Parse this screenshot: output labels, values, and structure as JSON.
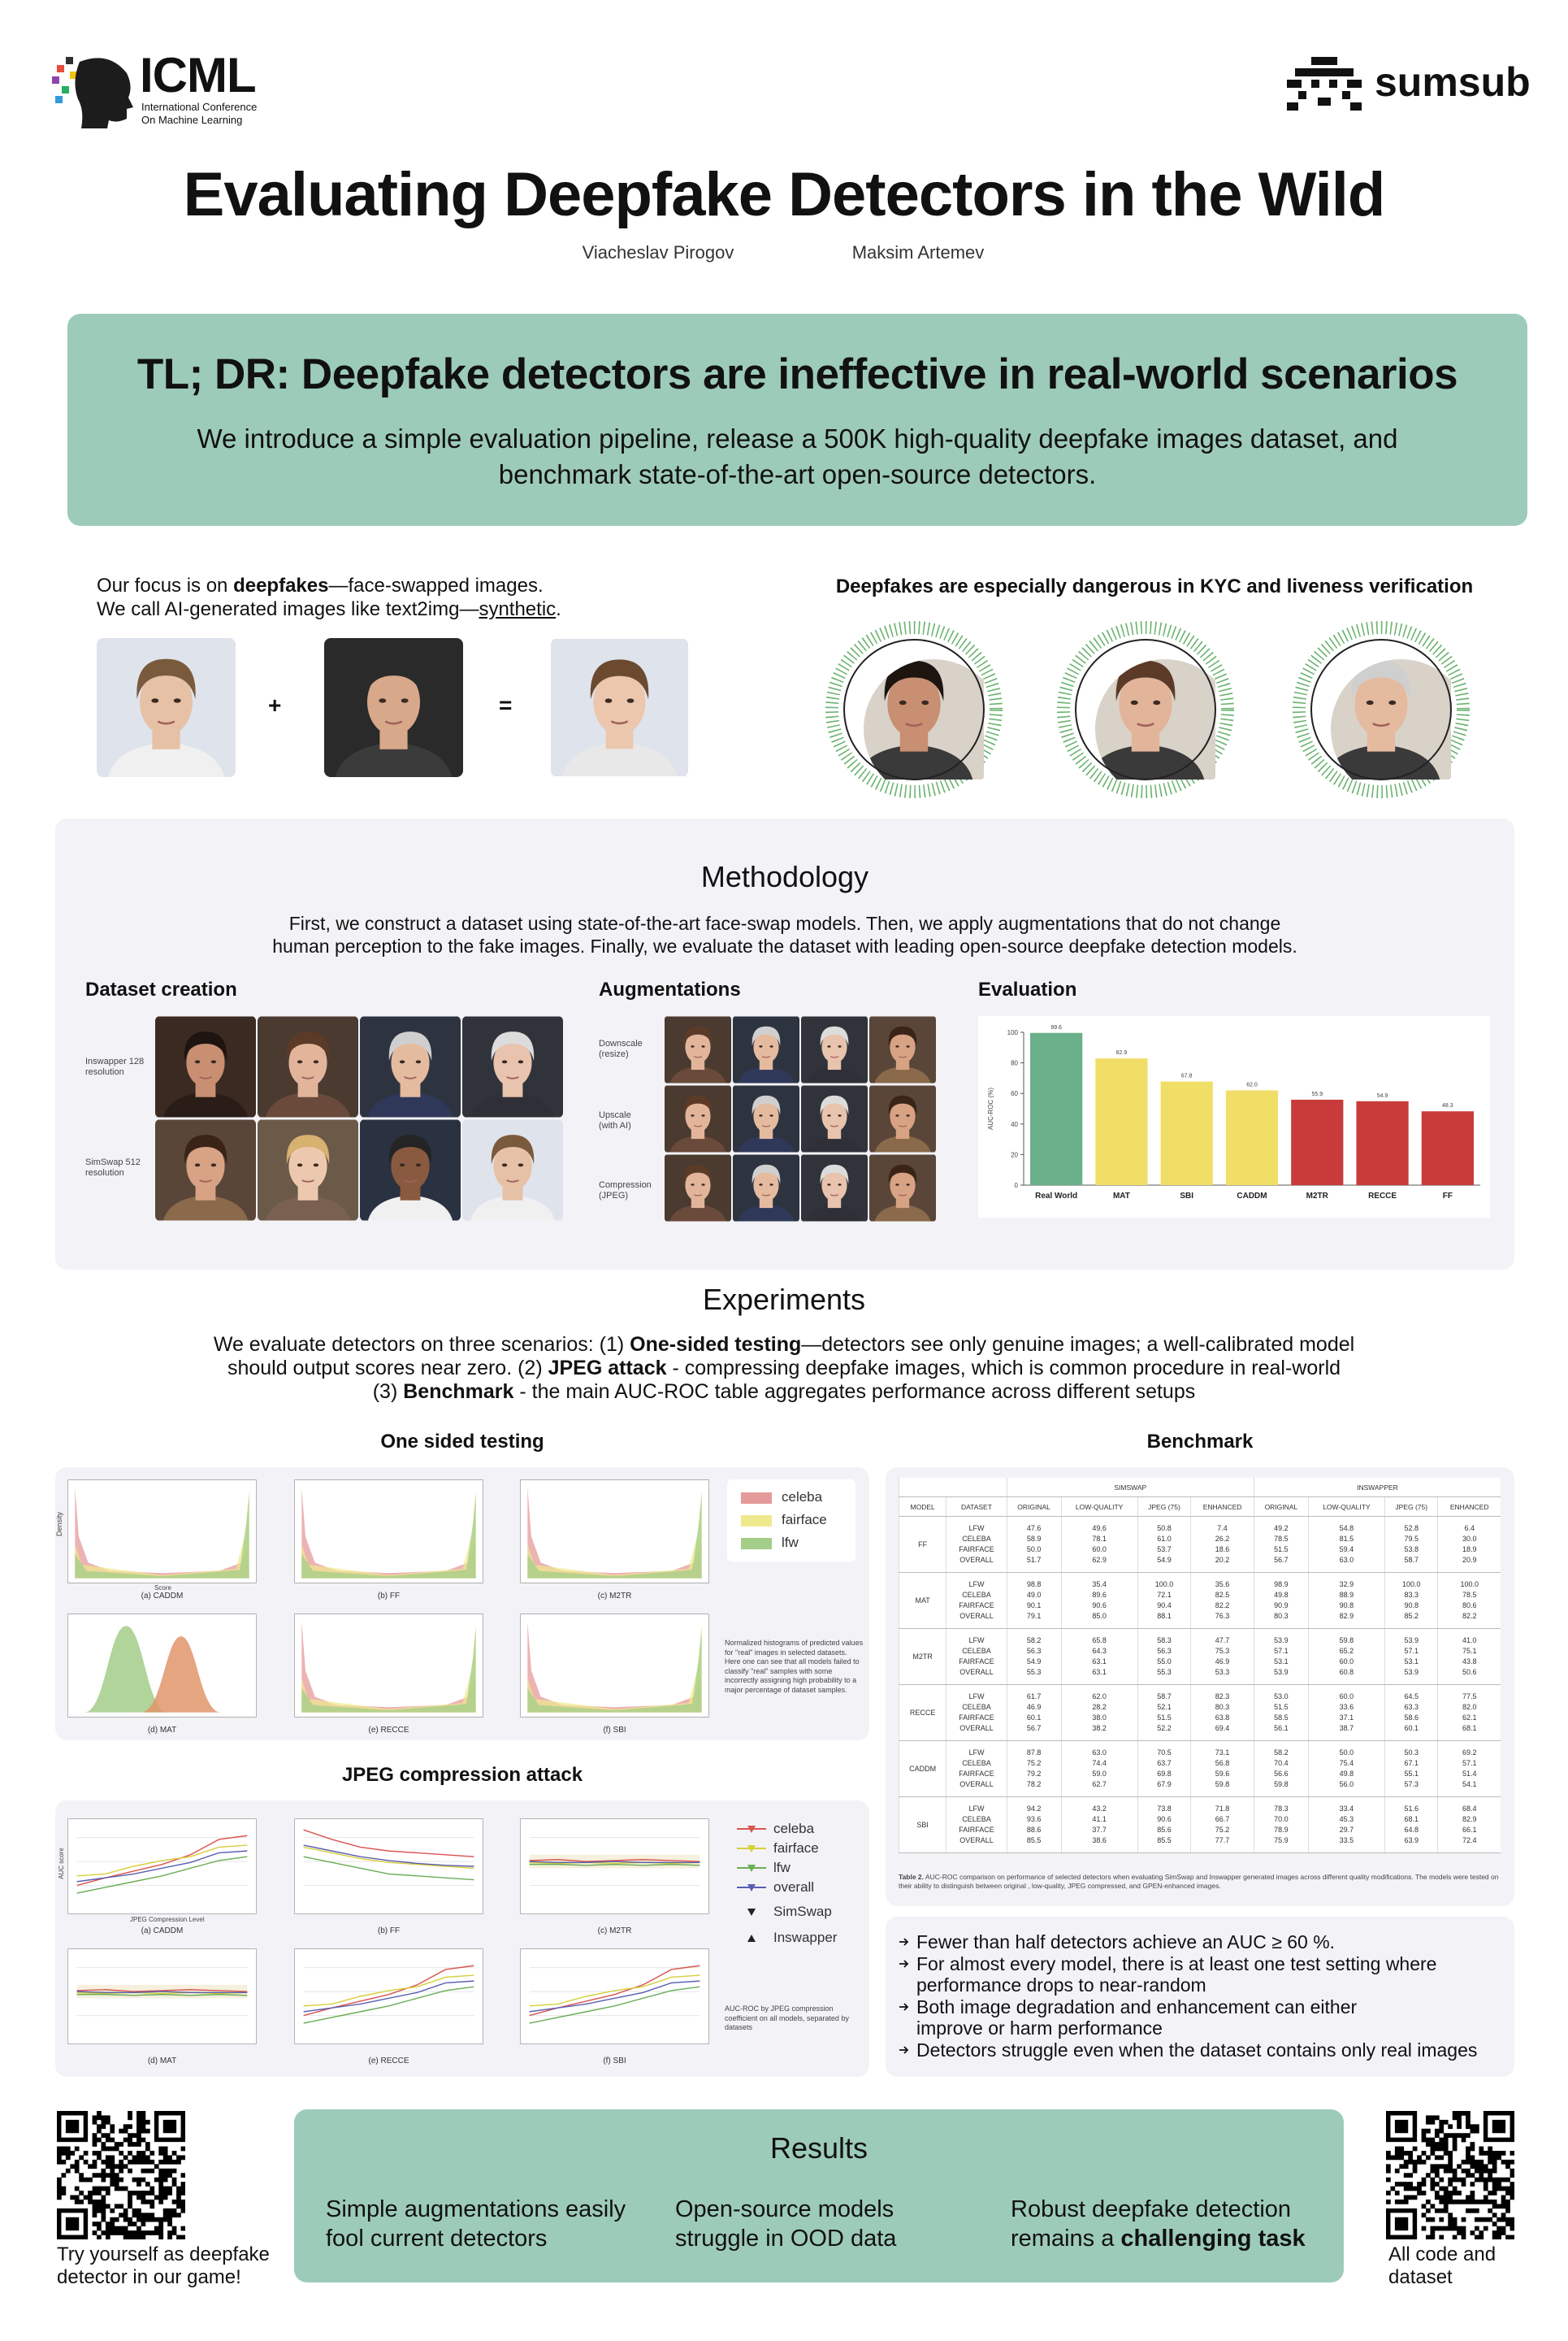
{
  "header": {
    "logo_left": {
      "name": "ICML",
      "lines": [
        "International Conference",
        "On Machine Learning"
      ]
    },
    "logo_right": "sumsub",
    "title": "Evaluating Deepfake Detectors in the Wild",
    "authors": [
      "Viacheslav Pirogov",
      "Maksim Artemev"
    ]
  },
  "tldr": {
    "title": "TL; DR: Deepfake detectors are ineffective in real-world scenarios",
    "lines": [
      "We introduce a simple evaluation pipeline, release a 500K high-quality deepfake images dataset, and",
      "benchmark state-of-the-art open-source detectors."
    ]
  },
  "intro": {
    "line1": [
      "Our focus is on ",
      "deepfakes",
      "—face-swapped images."
    ],
    "line2": [
      "We call AI-generated images like text2img—",
      "synthetic",
      "."
    ],
    "plus": "+",
    "equals": "=",
    "kyc_title": "Deepfakes are especially dangerous in KYC and liveness verification"
  },
  "methodology": {
    "title": "Methodology",
    "lines": [
      "First, we construct a dataset using state-of-the-art face-swap models. Then, we apply augmentations that do not change",
      "human perception to the fake images. Finally, we evaluate the dataset with leading open-source deepfake detection models."
    ],
    "dataset_creation": {
      "title": "Dataset creation",
      "rows": [
        [
          "Inswapper 128",
          "resolution"
        ],
        [
          "SimSwap 512",
          "resolution"
        ]
      ]
    },
    "augmentations": {
      "title": "Augmentations",
      "rows": [
        [
          "Downscale",
          "(resize)"
        ],
        [
          "Upscale",
          "(with AI)"
        ],
        [
          "Compression",
          "(JPEG)"
        ]
      ]
    },
    "evaluation": {
      "title": "Evaluation",
      "chart_data": {
        "type": "bar",
        "y_label": "AUC-ROC (%)",
        "categories": [
          "Real World",
          "MAT",
          "SBI",
          "CADDM",
          "M2TR",
          "RECCE",
          "FF"
        ],
        "values": [
          99.6,
          82.9,
          67.8,
          62,
          55.9,
          54.9,
          48.3
        ],
        "value_labels": [
          "99.6",
          "82.9",
          "67.8",
          "62.0",
          "55.9",
          "54.9",
          "48.3"
        ],
        "colors": [
          "#6ab08a",
          "#f1de66",
          "#f1de66",
          "#f1de66",
          "#c93a3a",
          "#c93a3a",
          "#c93a3a"
        ],
        "ylim": [
          0,
          100
        ],
        "yticks": [
          0,
          20,
          40,
          60,
          80,
          100
        ]
      }
    }
  },
  "experiments": {
    "title": "Experiments",
    "lines": [
      [
        "We evaluate detectors on three scenarios: (1) ",
        "One-sided testing",
        "—detectors see only genuine images; a well-calibrated model"
      ],
      [
        "should output scores near zero. (2) ",
        "JPEG attack",
        " - compressing deepfake images, which is common procedure in real-world"
      ],
      [
        "(3) ",
        "Benchmark",
        " - the main AUC-ROC table aggregates performance across different setups"
      ]
    ]
  },
  "one_sided": {
    "title": "One sided testing",
    "x_label": "Score",
    "y_label": "Density",
    "captions": [
      "(a) CADDM",
      "(b) FF",
      "(c) M2TR",
      "(d) MAT",
      "(e) RECCE",
      "(f) SBI"
    ],
    "legend": [
      "celeba",
      "fairface",
      "lfw"
    ],
    "note": "Normalized histograms of predicted values for \"real\" images in selected datasets. Here one can see that all models failed to classify \"real\" samples with some incorrectly assigning high probability to a major percentage of dataset samples."
  },
  "jpeg": {
    "title": "JPEG compression attack",
    "x_label": "JPEG Compression Level",
    "y_label": "AUC score",
    "captions": [
      "(a) CADDM",
      "(b) FF",
      "(c) M2TR",
      "(d) MAT",
      "(e) RECCE",
      "(f) SBI"
    ],
    "legend": [
      "celeba",
      "fairface",
      "lfw",
      "overall",
      "SimSwap",
      "Inswapper"
    ],
    "note": "AUC-ROC by JPEG compression coefficient on all models, separated by datasets"
  },
  "benchmark": {
    "title": "Benchmark",
    "groups": [
      "SIMSWAP",
      "INSWAPPER"
    ],
    "columns": [
      "MODEL",
      "DATASET",
      "ORIGINAL",
      "LOW-QUALITY",
      "JPEG (75)",
      "ENHANCED",
      "ORIGINAL",
      "LOW-QUALITY",
      "JPEG (75)",
      "ENHANCED"
    ],
    "rows": [
      {
        "model": "FF",
        "datasets": [
          "LFW",
          "CELEBA",
          "FAIRFACE",
          "OVERALL"
        ],
        "values": [
          [
            "47.6",
            "49.6",
            "50.8",
            "7.4",
            "49.2",
            "54.8",
            "52.8",
            "6.4"
          ],
          [
            "58.9",
            "78.1",
            "61.0",
            "26.2",
            "78.5",
            "81.5",
            "79.5",
            "30.0"
          ],
          [
            "50.0",
            "60.0",
            "53.7",
            "18.6",
            "51.5",
            "59.4",
            "53.8",
            "18.9"
          ],
          [
            "51.7",
            "62.9",
            "54.9",
            "20.2",
            "56.7",
            "63.0",
            "58.7",
            "20.9"
          ]
        ]
      },
      {
        "model": "MAT",
        "datasets": [
          "LFW",
          "CELEBA",
          "FAIRFACE",
          "OVERALL"
        ],
        "values": [
          [
            "98.8",
            "35.4",
            "100.0",
            "35.6",
            "98.9",
            "32.9",
            "100.0",
            "100.0"
          ],
          [
            "49.0",
            "89.6",
            "72.1",
            "82.5",
            "49.8",
            "88.9",
            "83.3",
            "78.5"
          ],
          [
            "90.1",
            "90.6",
            "90.4",
            "82.2",
            "90.9",
            "90.8",
            "90.8",
            "80.6"
          ],
          [
            "79.1",
            "85.0",
            "88.1",
            "76.3",
            "80.3",
            "82.9",
            "85.2",
            "82.2"
          ]
        ]
      },
      {
        "model": "M2TR",
        "datasets": [
          "LFW",
          "CELEBA",
          "FAIRFACE",
          "OVERALL"
        ],
        "values": [
          [
            "58.2",
            "65.8",
            "58.3",
            "47.7",
            "53.9",
            "59.8",
            "53.9",
            "41.0"
          ],
          [
            "56.3",
            "64.3",
            "56.3",
            "75.3",
            "57.1",
            "65.2",
            "57.1",
            "75.1"
          ],
          [
            "54.9",
            "63.1",
            "55.0",
            "46.9",
            "53.1",
            "60.0",
            "53.1",
            "43.8"
          ],
          [
            "55.3",
            "63.1",
            "55.3",
            "53.3",
            "53.9",
            "60.8",
            "53.9",
            "50.6"
          ]
        ]
      },
      {
        "model": "RECCE",
        "datasets": [
          "LFW",
          "CELEBA",
          "FAIRFACE",
          "OVERALL"
        ],
        "values": [
          [
            "61.7",
            "62.0",
            "58.7",
            "82.3",
            "53.0",
            "60.0",
            "64.5",
            "77.5"
          ],
          [
            "46.9",
            "28.2",
            "52.1",
            "80.3",
            "51.5",
            "33.6",
            "63.3",
            "82.0"
          ],
          [
            "60.1",
            "38.0",
            "51.5",
            "63.8",
            "58.5",
            "37.1",
            "58.6",
            "62.1"
          ],
          [
            "56.7",
            "38.2",
            "52.2",
            "69.4",
            "56.1",
            "38.7",
            "60.1",
            "68.1"
          ]
        ]
      },
      {
        "model": "CADDM",
        "datasets": [
          "LFW",
          "CELEBA",
          "FAIRFACE",
          "OVERALL"
        ],
        "values": [
          [
            "87.8",
            "63.0",
            "70.5",
            "73.1",
            "58.2",
            "50.0",
            "50.3",
            "69.2"
          ],
          [
            "75.2",
            "74.4",
            "63.7",
            "56.8",
            "70.4",
            "75.4",
            "67.1",
            "57.1"
          ],
          [
            "79.2",
            "59.0",
            "69.8",
            "59.6",
            "56.6",
            "49.8",
            "55.1",
            "51.4"
          ],
          [
            "78.2",
            "62.7",
            "67.9",
            "59.8",
            "59.8",
            "56.0",
            "57.3",
            "54.1"
          ]
        ]
      },
      {
        "model": "SBI",
        "datasets": [
          "LFW",
          "CELEBA",
          "FAIRFACE",
          "OVERALL"
        ],
        "values": [
          [
            "94.2",
            "43.2",
            "73.8",
            "71.8",
            "78.3",
            "33.4",
            "51.6",
            "68.4"
          ],
          [
            "93.6",
            "41.1",
            "90.6",
            "66.7",
            "70.0",
            "45.3",
            "68.1",
            "82.9"
          ],
          [
            "88.6",
            "37.7",
            "85.6",
            "75.2",
            "78.9",
            "29.7",
            "64.8",
            "66.1"
          ],
          [
            "85.5",
            "38.6",
            "85.5",
            "77.7",
            "75.9",
            "33.5",
            "63.9",
            "72.4"
          ]
        ]
      }
    ],
    "caption": [
      "Table 2.",
      " AUC-ROC comparison on performance of selected detectors when evaluating SimSwap and Inswapper generated images across different quality modifications. The models were tested on their ability to distinguish between original , low-quality, JPEG compressed, and GPEN-enhanced images."
    ]
  },
  "findings": [
    [
      "Fewer than half detectors achieve an AUC ≥ 60 %."
    ],
    [
      "For almost every model, there is at least one test setting where",
      "performance drops to near-random"
    ],
    [
      "Both image degradation and enhancement can either",
      "improve or harm performance"
    ],
    [
      "Detectors struggle even when the dataset contains only real images"
    ]
  ],
  "results": {
    "title": "Results",
    "columns": [
      [
        "Simple augmentations easily",
        "fool current detectors"
      ],
      [
        "Open-source models",
        "struggle in OOD data"
      ],
      [
        "Robust deepfake detection",
        "remains a",
        "challenging task"
      ]
    ]
  },
  "qr_left": [
    "Try yourself as deepfake",
    "detector in our game!"
  ],
  "qr_right": [
    "All code and",
    "dataset"
  ]
}
